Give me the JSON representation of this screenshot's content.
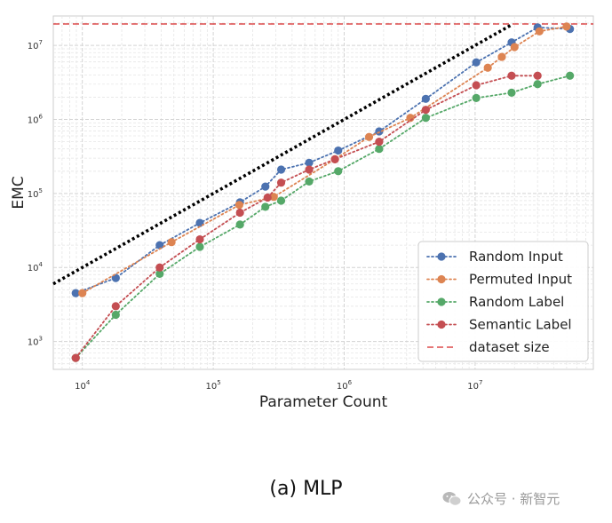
{
  "chart_data": {
    "type": "line",
    "xscale": "log",
    "yscale": "log",
    "xlabel": "Parameter Count",
    "ylabel": "EMC",
    "xlim": [
      6000,
      80000000
    ],
    "ylim": [
      420,
      25000000
    ],
    "grid": true,
    "legend_position": "bottom-right",
    "x_ticks": [
      {
        "base": "10",
        "exp": "4",
        "value": 10000
      },
      {
        "base": "10",
        "exp": "5",
        "value": 100000
      },
      {
        "base": "10",
        "exp": "6",
        "value": 1000000
      },
      {
        "base": "10",
        "exp": "7",
        "value": 10000000
      }
    ],
    "y_ticks": [
      {
        "base": "10",
        "exp": "3",
        "value": 1000
      },
      {
        "base": "10",
        "exp": "4",
        "value": 10000
      },
      {
        "base": "10",
        "exp": "5",
        "value": 100000
      },
      {
        "base": "10",
        "exp": "6",
        "value": 1000000
      },
      {
        "base": "10",
        "exp": "7",
        "value": 10000000
      }
    ],
    "series": [
      {
        "name": "Random Input",
        "color": "#4c72b0",
        "line": "dotted",
        "x": [
          8900,
          18000,
          39000,
          79000,
          160000,
          250000,
          330000,
          540000,
          900000,
          1850000,
          4200000,
          10200000,
          19000000,
          30000000,
          53000000
        ],
        "y": [
          4500,
          7200,
          20000,
          40000,
          76000,
          124000,
          210000,
          260000,
          380000,
          690000,
          1900000,
          5900000,
          11000000,
          17500000,
          16700000
        ]
      },
      {
        "name": "Permuted Input",
        "color": "#dd8452",
        "line": "dotted",
        "x": [
          10000,
          48000,
          158000,
          290000,
          850000,
          1550000,
          3200000,
          12500000,
          16000000,
          20000000,
          31000000,
          50000000
        ],
        "y": [
          4500,
          22000,
          70000,
          90000,
          290000,
          580000,
          1050000,
          5000000,
          7000000,
          9500000,
          15500000,
          18000000
        ]
      },
      {
        "name": "Random Label",
        "color": "#55a868",
        "line": "dotted",
        "x": [
          8900,
          18000,
          39000,
          79000,
          160000,
          250000,
          330000,
          540000,
          900000,
          1850000,
          4200000,
          10200000,
          19000000,
          30000000,
          53000000
        ],
        "y": [
          600,
          2300,
          8200,
          19000,
          38000,
          66000,
          80000,
          145000,
          200000,
          400000,
          1050000,
          1950000,
          2300000,
          3000000,
          3900000
        ]
      },
      {
        "name": "Semantic Label",
        "color": "#c44e52",
        "line": "dotted",
        "x": [
          8900,
          18000,
          39000,
          79000,
          160000,
          260000,
          330000,
          540000,
          850000,
          1850000,
          4200000,
          10200000,
          19000000,
          30000000
        ],
        "y": [
          600,
          3000,
          10000,
          24000,
          55000,
          88000,
          140000,
          210000,
          290000,
          500000,
          1350000,
          2900000,
          3900000,
          3900000
        ]
      }
    ],
    "reference_lines": [
      {
        "name": "dataset size",
        "color": "#d62728",
        "style": "dashed",
        "y": 19500000
      },
      {
        "name": "",
        "color": "#000000",
        "style": "dotted",
        "x": [
          6000,
          19000000
        ],
        "y": [
          6000,
          19000000
        ]
      }
    ],
    "legend": [
      {
        "label": "Random Input",
        "color": "#4c72b0",
        "kind": "marker"
      },
      {
        "label": "Permuted Input",
        "color": "#dd8452",
        "kind": "marker"
      },
      {
        "label": "Random Label",
        "color": "#55a868",
        "kind": "marker"
      },
      {
        "label": "Semantic Label",
        "color": "#c44e52",
        "kind": "marker"
      },
      {
        "label": "dataset size",
        "color": "#d62728",
        "kind": "dashed"
      }
    ]
  },
  "caption": "(a) MLP",
  "watermark": {
    "icon": "wechat-icon",
    "text": "公众号 · 新智元"
  }
}
